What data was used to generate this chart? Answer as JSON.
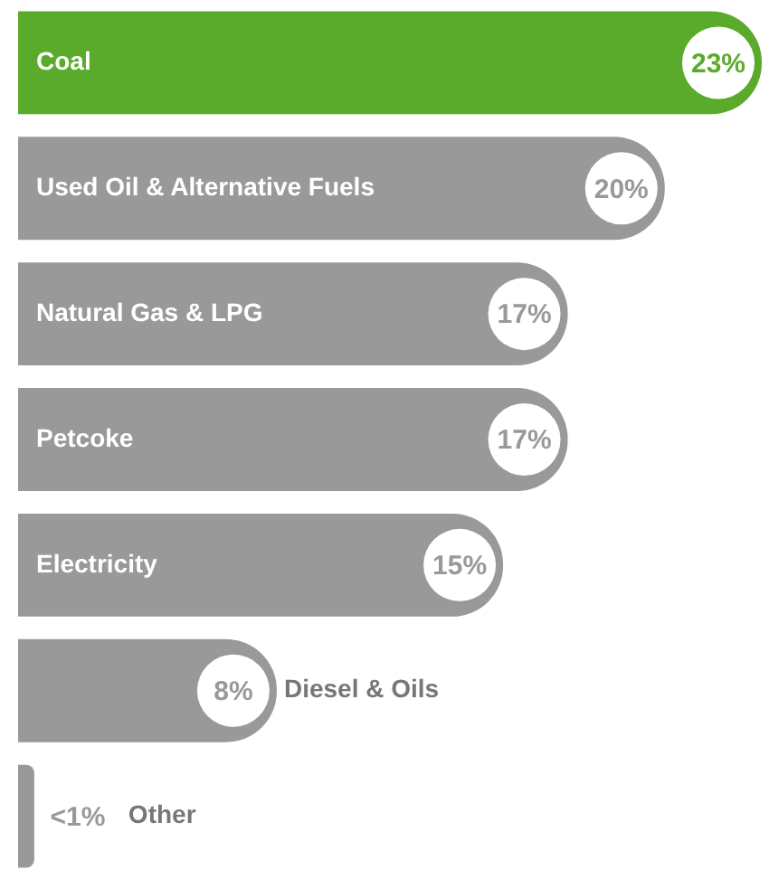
{
  "chart_data": {
    "type": "bar",
    "orientation": "horizontal",
    "categories": [
      "Coal",
      "Used Oil & Alternative Fuels",
      "Natural Gas & LPG",
      "Petcoke",
      "Electricity",
      "Diesel & Oils",
      "Other"
    ],
    "values": [
      23,
      20,
      17,
      17,
      15,
      8,
      0.5
    ],
    "value_labels": [
      "23%",
      "20%",
      "17%",
      "17%",
      "15%",
      "8%",
      "<1%"
    ],
    "colors": [
      "#5aab2b",
      "#999999",
      "#999999",
      "#999999",
      "#999999",
      "#999999",
      "#999999"
    ],
    "legend": false
  }
}
